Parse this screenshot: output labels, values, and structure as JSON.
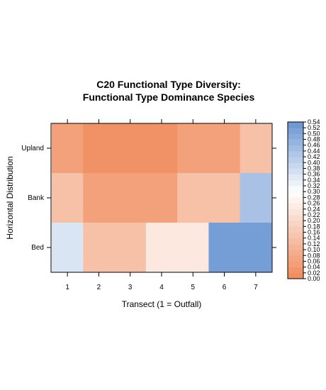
{
  "chart_data": {
    "type": "heatmap",
    "title_lines": [
      "C20 Functional Type Diversity:",
      "Functional Type Dominance Species"
    ],
    "xlabel": "Transect (1 = Outfall)",
    "ylabel": "Horizontal Distribution",
    "x_categories": [
      "1",
      "2",
      "3",
      "4",
      "5",
      "6",
      "7"
    ],
    "y_categories": [
      "Bed",
      "Bank",
      "Upland"
    ],
    "values": {
      "Upland": [
        0.06,
        0.02,
        0.02,
        0.02,
        0.06,
        0.06,
        0.14
      ],
      "Bank": [
        0.14,
        0.06,
        0.06,
        0.06,
        0.14,
        0.14,
        0.44
      ],
      "Bed": [
        0.36,
        0.14,
        0.14,
        0.24,
        0.24,
        0.52,
        0.52
      ]
    },
    "colorbar": {
      "range": [
        0.0,
        0.54
      ],
      "step": 0.02,
      "ticks": [
        "0.00",
        "0.02",
        "0.04",
        "0.06",
        "0.08",
        "0.10",
        "0.12",
        "0.14",
        "0.16",
        "0.18",
        "0.20",
        "0.22",
        "0.24",
        "0.26",
        "0.28",
        "0.30",
        "0.32",
        "0.34",
        "0.36",
        "0.38",
        "0.40",
        "0.42",
        "0.44",
        "0.46",
        "0.48",
        "0.50",
        "0.52",
        "0.54"
      ],
      "low_color": "#ef8a5a",
      "mid_color": "#ffffff",
      "high_color": "#6a95d2"
    },
    "grid": false,
    "legend_position": "right"
  }
}
